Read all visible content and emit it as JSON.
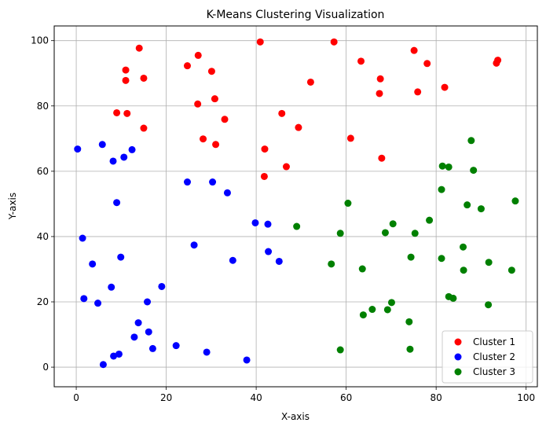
{
  "chart_data": {
    "type": "scatter",
    "title": "K-Means Clustering Visualization",
    "xlabel": "X-axis",
    "ylabel": "Y-axis",
    "xlim": [
      -4.9,
      102.5
    ],
    "ylim": [
      -6,
      104.5
    ],
    "xticks": [
      0,
      20,
      40,
      60,
      80,
      100
    ],
    "yticks": [
      0,
      20,
      40,
      60,
      80,
      100
    ],
    "grid": true,
    "legend_position": "bottom-right",
    "series": [
      {
        "name": "Cluster 1",
        "color": "#ff0000",
        "points": [
          [
            14,
            97.7
          ],
          [
            11,
            91
          ],
          [
            15,
            88.5
          ],
          [
            11,
            87.8
          ],
          [
            9,
            77.9
          ],
          [
            11.3,
            77.7
          ],
          [
            15,
            73.2
          ],
          [
            24.7,
            92.3
          ],
          [
            27.1,
            95.5
          ],
          [
            30.1,
            90.6
          ],
          [
            27,
            80.6
          ],
          [
            30.8,
            82.2
          ],
          [
            33,
            75.9
          ],
          [
            28.2,
            69.9
          ],
          [
            31,
            68.2
          ],
          [
            40.9,
            99.6
          ],
          [
            57.3,
            99.6
          ],
          [
            52.1,
            87.3
          ],
          [
            45.7,
            77.7
          ],
          [
            49.4,
            73.4
          ],
          [
            41.9,
            66.8
          ],
          [
            46.7,
            61.4
          ],
          [
            41.8,
            58.4
          ],
          [
            61,
            70.1
          ],
          [
            63.3,
            93.7
          ],
          [
            67.6,
            88.3
          ],
          [
            67.4,
            83.8
          ],
          [
            67.9,
            64
          ],
          [
            75.1,
            97
          ],
          [
            78,
            93
          ],
          [
            75.9,
            84.3
          ],
          [
            81.9,
            85.7
          ],
          [
            93.4,
            93.1
          ],
          [
            93.7,
            94
          ]
        ]
      },
      {
        "name": "Cluster 2",
        "color": "#0000ff",
        "points": [
          [
            0.3,
            66.8
          ],
          [
            5.8,
            68.2
          ],
          [
            8.2,
            63.1
          ],
          [
            10.6,
            64.3
          ],
          [
            12.4,
            66.6
          ],
          [
            9,
            50.4
          ],
          [
            1.4,
            39.5
          ],
          [
            3.6,
            31.6
          ],
          [
            9.9,
            33.7
          ],
          [
            1.7,
            21
          ],
          [
            4.8,
            19.6
          ],
          [
            7.8,
            24.5
          ],
          [
            15.8,
            20
          ],
          [
            19,
            24.7
          ],
          [
            13.8,
            13.6
          ],
          [
            16.1,
            10.8
          ],
          [
            12.9,
            9.2
          ],
          [
            8.3,
            3.4
          ],
          [
            9.5,
            4
          ],
          [
            6,
            0.8
          ],
          [
            17,
            5.7
          ],
          [
            22.2,
            6.6
          ],
          [
            29,
            4.6
          ],
          [
            37.9,
            2.2
          ],
          [
            24.7,
            56.7
          ],
          [
            30.3,
            56.7
          ],
          [
            33.6,
            53.4
          ],
          [
            26.2,
            37.4
          ],
          [
            34.8,
            32.7
          ],
          [
            39.8,
            44.2
          ],
          [
            42.6,
            43.8
          ],
          [
            42.7,
            35.4
          ],
          [
            45.1,
            32.4
          ]
        ]
      },
      {
        "name": "Cluster 3",
        "color": "#008000",
        "points": [
          [
            49,
            43.1
          ],
          [
            60.4,
            50.2
          ],
          [
            58.7,
            41
          ],
          [
            56.7,
            31.6
          ],
          [
            63.6,
            30.1
          ],
          [
            58.7,
            5.3
          ],
          [
            63.8,
            16
          ],
          [
            65.8,
            17.7
          ],
          [
            69.2,
            17.6
          ],
          [
            70.1,
            19.8
          ],
          [
            68.7,
            41.2
          ],
          [
            70.4,
            43.9
          ],
          [
            75.3,
            41
          ],
          [
            78.5,
            45
          ],
          [
            74.4,
            33.7
          ],
          [
            74,
            13.9
          ],
          [
            74.2,
            5.5
          ],
          [
            81.4,
            61.6
          ],
          [
            82.8,
            61.3
          ],
          [
            81.2,
            54.4
          ],
          [
            81.2,
            33.3
          ],
          [
            82.8,
            21.6
          ],
          [
            83.8,
            21.1
          ],
          [
            86,
            36.8
          ],
          [
            86.1,
            29.7
          ],
          [
            87.8,
            69.4
          ],
          [
            88.3,
            60.3
          ],
          [
            86.9,
            49.7
          ],
          [
            90,
            48.5
          ],
          [
            91.7,
            32.1
          ],
          [
            91.6,
            19.1
          ],
          [
            96.8,
            29.7
          ],
          [
            97.6,
            50.9
          ]
        ]
      }
    ]
  }
}
